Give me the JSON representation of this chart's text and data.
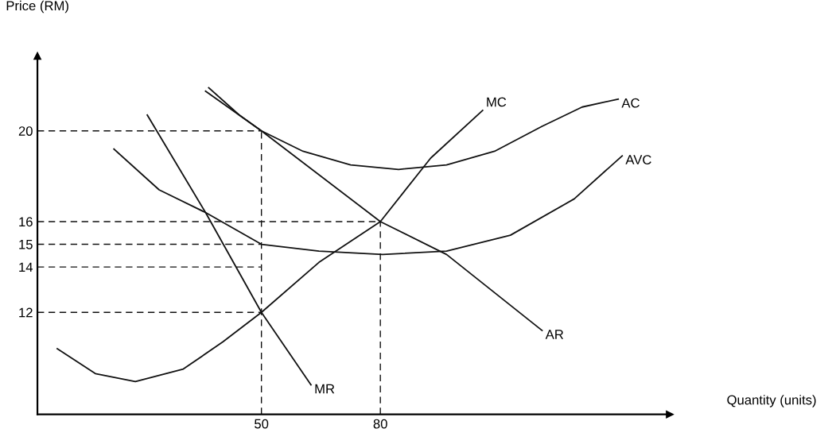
{
  "chart_data": {
    "type": "line",
    "xlabel": "Quantity (units)",
    "ylabel": "Price (RM)",
    "xlim": [
      -6.5,
      153
    ],
    "ylim": [
      7.5,
      23.3
    ],
    "xticks": [
      50,
      80
    ],
    "yticks": [
      12,
      14,
      15,
      16,
      20
    ],
    "grid": false,
    "legend": false,
    "marker": "none",
    "series": [
      {
        "name": "MC",
        "color": "#111111",
        "x": [
          -1.5,
          8.1,
          18.2,
          30.3,
          40.3,
          50,
          64.5,
          80,
          92.7,
          105.8
        ],
        "values": [
          10.4,
          9.3,
          8.95,
          9.5,
          10.7,
          12,
          14.2,
          16,
          18.8,
          20.9
        ]
      },
      {
        "name": "AC",
        "color": "#111111",
        "x": [
          36.7,
          44.4,
          50,
          60.5,
          72.5,
          84.6,
          96.7,
          108.8,
          120.8,
          130.9,
          140
        ],
        "values": [
          21.9,
          20.7,
          20,
          19.1,
          18.5,
          18.3,
          18.5,
          19.1,
          20.2,
          21.05,
          21.4
        ]
      },
      {
        "name": "AVC",
        "color": "#111111",
        "x": [
          12.8,
          24.2,
          35.9,
          50,
          64.5,
          80.6,
          96.7,
          112.8,
          128.9,
          141
        ],
        "values": [
          19.2,
          17.4,
          16.4,
          15,
          14.7,
          14.55,
          14.7,
          15.4,
          17.0,
          18.9
        ]
      },
      {
        "name": "AR",
        "color": "#111111",
        "x": [
          35.9,
          50,
          80,
          96.7,
          120.8
        ],
        "values": [
          21.75,
          20,
          16,
          14.55,
          11.2
        ]
      },
      {
        "name": "MR",
        "color": "#111111",
        "x": [
          21.2,
          35.9,
          50,
          62.5
        ],
        "values": [
          20.7,
          16.4,
          12,
          8.8
        ]
      },
      {
        "color": "#111111",
        "line_style": "dashed",
        "x": [
          -6.5,
          50
        ],
        "values": [
          20,
          20
        ]
      },
      {
        "color": "#111111",
        "line_style": "dashed",
        "x": [
          -6.5,
          80
        ],
        "values": [
          16,
          16
        ]
      },
      {
        "color": "#111111",
        "line_style": "dashed",
        "x": [
          -6.5,
          50
        ],
        "values": [
          15,
          15
        ]
      },
      {
        "color": "#111111",
        "line_style": "dashed",
        "x": [
          -6.5,
          50
        ],
        "values": [
          14,
          14
        ]
      },
      {
        "color": "#111111",
        "line_style": "dashed",
        "x": [
          -6.5,
          50
        ],
        "values": [
          12,
          12
        ]
      },
      {
        "color": "#111111",
        "line_style": "dashed",
        "x": [
          50,
          50
        ],
        "values": [
          7.5,
          20
        ]
      },
      {
        "color": "#111111",
        "line_style": "dashed",
        "x": [
          80,
          80
        ],
        "values": [
          7.5,
          16
        ]
      }
    ]
  }
}
